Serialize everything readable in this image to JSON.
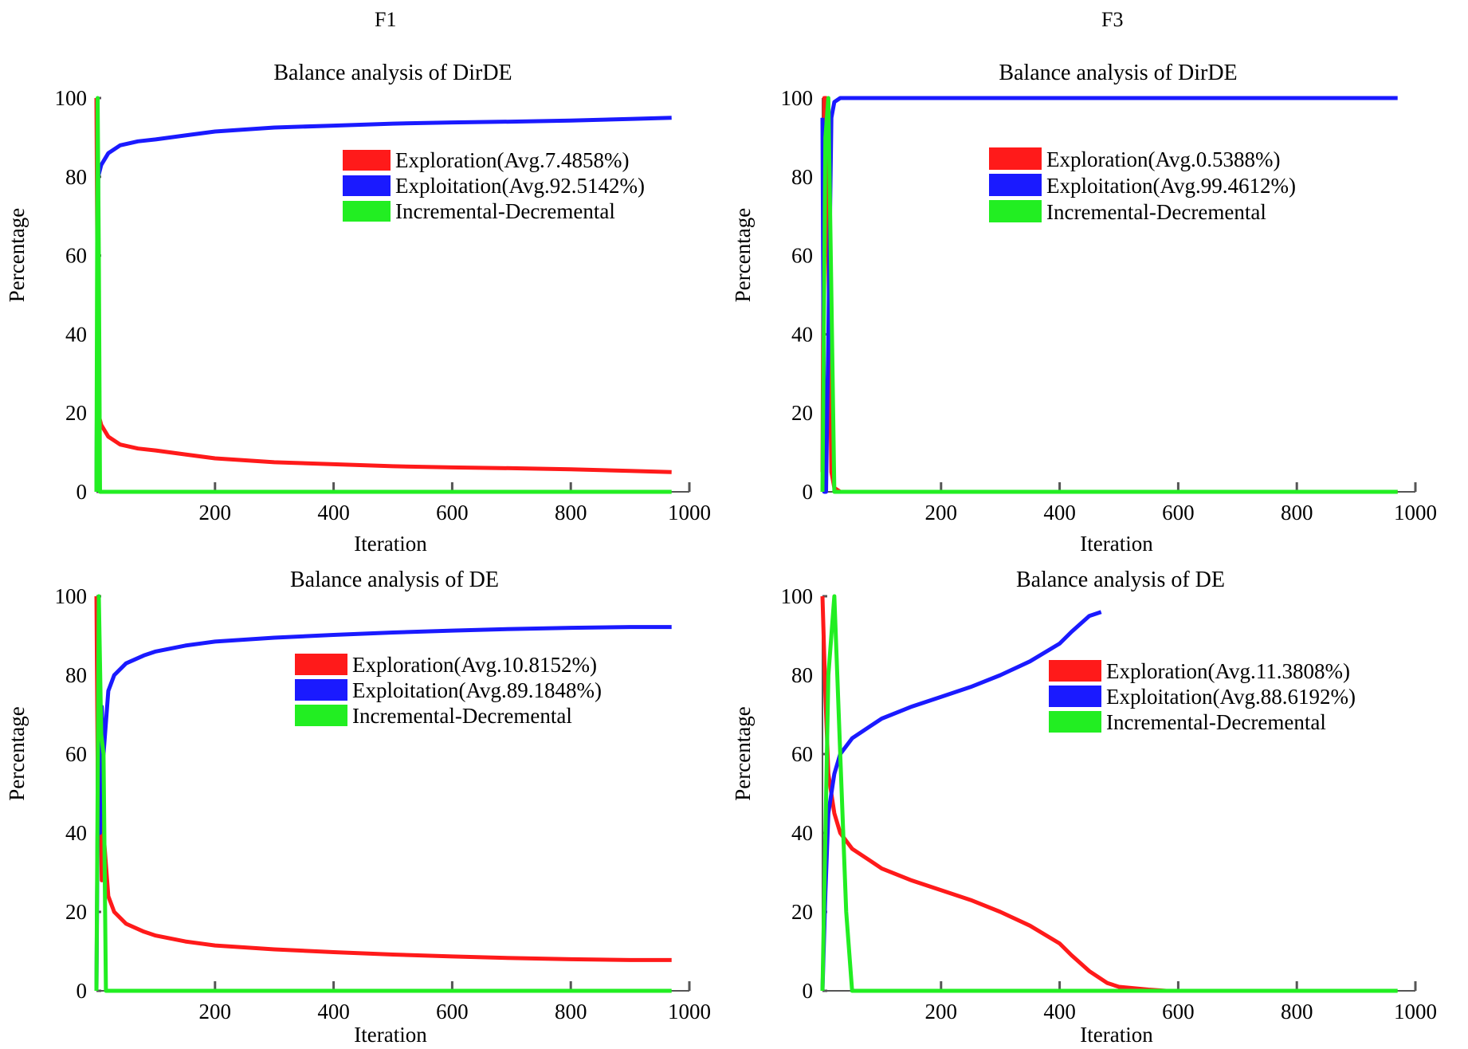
{
  "columns": [
    "F1",
    "F3"
  ],
  "colors": {
    "exploration": "#ff1a1a",
    "exploitation": "#1a1aff",
    "incdec": "#22ee22"
  },
  "chart_data": [
    {
      "type": "line",
      "title": "Balance analysis of DirDE",
      "xlabel": "Iteration",
      "ylabel": "Percentage",
      "xlim": [
        0,
        1000
      ],
      "ylim": [
        0,
        100
      ],
      "xticks": [
        200,
        400,
        600,
        800,
        1000
      ],
      "yticks": [
        0,
        20,
        40,
        60,
        80,
        100
      ],
      "legend_position": "top-right",
      "series": [
        {
          "name": "Exploration(Avg.7.4858%)",
          "key": "exploration",
          "x": [
            0,
            3,
            8,
            20,
            40,
            70,
            100,
            150,
            200,
            300,
            400,
            500,
            600,
            700,
            800,
            900,
            970
          ],
          "y": [
            100,
            20,
            17,
            14,
            12,
            11,
            10.5,
            9.5,
            8.5,
            7.5,
            7,
            6.5,
            6.2,
            6,
            5.7,
            5.3,
            5
          ]
        },
        {
          "name": "Exploitation(Avg.92.5142%)",
          "key": "exploitation",
          "x": [
            0,
            3,
            8,
            20,
            40,
            70,
            100,
            150,
            200,
            300,
            400,
            500,
            600,
            700,
            800,
            900,
            970
          ],
          "y": [
            0,
            80,
            83,
            86,
            88,
            89,
            89.5,
            90.5,
            91.5,
            92.5,
            93,
            93.5,
            93.8,
            94,
            94.3,
            94.7,
            95
          ]
        },
        {
          "name": "Incremental-Decremental",
          "key": "incdec",
          "x": [
            0,
            2,
            4,
            6,
            20,
            970
          ],
          "y": [
            0,
            100,
            60,
            0,
            0,
            0
          ]
        }
      ]
    },
    {
      "type": "line",
      "title": "Balance analysis of DirDE",
      "xlabel": "Iteration",
      "ylabel": "Percentage",
      "xlim": [
        0,
        1000
      ],
      "ylim": [
        0,
        100
      ],
      "xticks": [
        200,
        400,
        600,
        800,
        1000
      ],
      "yticks": [
        0,
        20,
        40,
        60,
        80,
        100
      ],
      "legend_position": "top-right",
      "series": [
        {
          "name": "Exploration(Avg.0.5388%)",
          "key": "exploration",
          "x": [
            0,
            3,
            6,
            10,
            15,
            20,
            30,
            970
          ],
          "y": [
            5,
            100,
            100,
            60,
            5,
            1,
            0,
            0
          ]
        },
        {
          "name": "Exploitation(Avg.99.4612%)",
          "key": "exploitation",
          "x": [
            0,
            3,
            6,
            10,
            15,
            20,
            30,
            970
          ],
          "y": [
            95,
            0,
            0,
            40,
            95,
            99,
            100,
            100
          ]
        },
        {
          "name": "Incremental-Decremental",
          "key": "incdec",
          "x": [
            0,
            5,
            10,
            15,
            20,
            970
          ],
          "y": [
            0,
            90,
            100,
            50,
            0,
            0
          ]
        }
      ]
    },
    {
      "type": "line",
      "title": "Balance analysis of DE",
      "xlabel": "Iteration",
      "ylabel": "Percentage",
      "xlim": [
        0,
        1000
      ],
      "ylim": [
        0,
        100
      ],
      "xticks": [
        200,
        400,
        600,
        800,
        1000
      ],
      "yticks": [
        0,
        20,
        40,
        60,
        80,
        100
      ],
      "legend_position": "top-right",
      "series": [
        {
          "name": "Exploration(Avg.10.8152%)",
          "key": "exploration",
          "x": [
            0,
            3,
            6,
            9,
            12,
            20,
            30,
            50,
            80,
            100,
            150,
            200,
            300,
            400,
            500,
            600,
            700,
            800,
            900,
            970
          ],
          "y": [
            100,
            40,
            60,
            28,
            40,
            24,
            20,
            17,
            15,
            14,
            12.5,
            11.5,
            10.5,
            9.8,
            9.2,
            8.7,
            8.3,
            8,
            7.8,
            7.8
          ]
        },
        {
          "name": "Exploitation(Avg.89.1848%)",
          "key": "exploitation",
          "x": [
            0,
            3,
            6,
            9,
            12,
            20,
            30,
            50,
            80,
            100,
            150,
            200,
            300,
            400,
            500,
            600,
            700,
            800,
            900,
            970
          ],
          "y": [
            0,
            60,
            40,
            72,
            60,
            76,
            80,
            83,
            85,
            86,
            87.5,
            88.5,
            89.5,
            90.2,
            90.8,
            91.3,
            91.7,
            92,
            92.2,
            92.2
          ]
        },
        {
          "name": "Incremental-Decremental",
          "key": "incdec",
          "x": [
            0,
            4,
            8,
            12,
            16,
            970
          ],
          "y": [
            0,
            100,
            65,
            60,
            0,
            0
          ]
        }
      ]
    },
    {
      "type": "line",
      "title": "Balance analysis of DE",
      "xlabel": "Iteration",
      "ylabel": "Percentage",
      "xlim": [
        0,
        1000
      ],
      "ylim": [
        0,
        100
      ],
      "xticks": [
        200,
        400,
        600,
        800,
        1000
      ],
      "yticks": [
        0,
        20,
        40,
        60,
        80,
        100
      ],
      "legend_position": "top-right",
      "series": [
        {
          "name": "Exploration(Avg.11.3808%)",
          "key": "exploration",
          "x": [
            0,
            5,
            10,
            20,
            30,
            50,
            80,
            100,
            150,
            200,
            250,
            300,
            350,
            400,
            420,
            450,
            480,
            500,
            550,
            580
          ],
          "y": [
            100,
            75,
            55,
            45,
            40,
            36,
            33,
            31,
            28,
            25.5,
            23,
            20,
            16.5,
            12,
            9,
            5,
            2,
            1,
            0.3,
            0
          ]
        },
        {
          "name": "Exploitation(Avg.88.6192%)",
          "key": "exploitation",
          "x": [
            0,
            5,
            10,
            20,
            30,
            50,
            80,
            100,
            150,
            200,
            250,
            300,
            350,
            400,
            420,
            450,
            470
          ],
          "y": [
            0,
            25,
            45,
            55,
            60,
            64,
            67,
            69,
            72,
            74.5,
            77,
            80,
            83.5,
            88,
            91,
            95,
            96
          ]
        },
        {
          "name": "Incremental-Decremental",
          "key": "incdec",
          "x": [
            0,
            10,
            20,
            30,
            40,
            50,
            970
          ],
          "y": [
            0,
            80,
            100,
            60,
            20,
            0,
            0
          ]
        }
      ]
    }
  ]
}
